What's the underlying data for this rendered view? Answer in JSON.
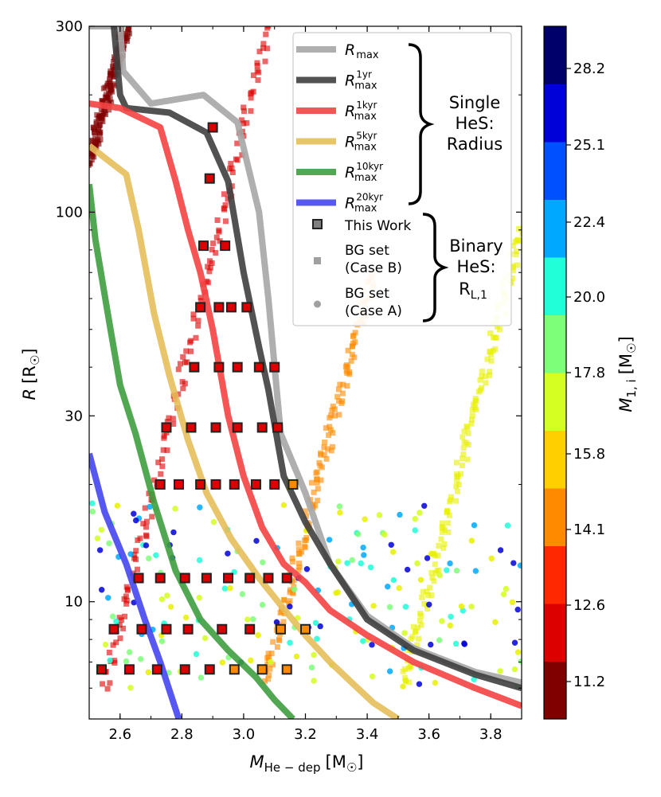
{
  "chart_data": {
    "type": "line",
    "x_axis": {
      "label_main": "M",
      "label_sub": "He − dep",
      "label_unit": "[M",
      "label_unit_sub": "☉",
      "label_close": "]",
      "range": [
        2.5,
        3.9
      ],
      "ticks": [
        2.6,
        2.8,
        3.0,
        3.2,
        3.4,
        3.6,
        3.8
      ],
      "tick_labels": [
        "2.6",
        "2.8",
        "3.0",
        "3.2",
        "3.4",
        "3.6",
        "3.8"
      ]
    },
    "y_axis": {
      "label_main": "R",
      "label_unit": "[R",
      "label_unit_sub": "☉",
      "label_close": "]",
      "scale": "log",
      "range": [
        5.0,
        300
      ],
      "ticks": [
        10,
        30,
        100,
        300
      ],
      "tick_labels": [
        "10",
        "30",
        "100",
        "300"
      ]
    },
    "colorbar": {
      "label_main": "M",
      "label_sub": "1, i",
      "label_unit": "[M",
      "label_unit_sub": "☉",
      "label_close": "]",
      "bins": [
        {
          "color": "#800000",
          "label": "11.2"
        },
        {
          "color": "#dd0000",
          "label": "12.6"
        },
        {
          "color": "#ff2800",
          "label": ""
        },
        {
          "color": "#ff8a00",
          "label": "14.1"
        },
        {
          "color": "#ffd000",
          "label": "15.8"
        },
        {
          "color": "#d4ff20",
          "label": ""
        },
        {
          "color": "#7dff7a",
          "label": "17.8"
        },
        {
          "color": "#20ffd8",
          "label": "20.0"
        },
        {
          "color": "#00a8ff",
          "label": "22.4"
        },
        {
          "color": "#0050ff",
          "label": "25.1"
        },
        {
          "color": "#0000d8",
          "label": "28.2"
        },
        {
          "color": "#00006a",
          "label": ""
        }
      ]
    },
    "series": [
      {
        "name": "R_max",
        "label": "R",
        "sub": "max",
        "sup": "",
        "color": "#a6a6a6",
        "points": [
          [
            2.5,
            300
          ],
          [
            2.6,
            300
          ],
          [
            2.61,
            230
          ],
          [
            2.7,
            190
          ],
          [
            2.87,
            200
          ],
          [
            2.98,
            170
          ],
          [
            3.05,
            100
          ],
          [
            3.08,
            60
          ],
          [
            3.12,
            27
          ],
          [
            3.2,
            19
          ],
          [
            3.28,
            12.5
          ],
          [
            3.4,
            9.2
          ],
          [
            3.55,
            7.6
          ],
          [
            3.75,
            6.6
          ],
          [
            3.9,
            6.2
          ]
        ]
      },
      {
        "name": "R_max_1yr",
        "label": "R",
        "sub": "max",
        "sup": "1yr",
        "color": "#3f3f3f",
        "points": [
          [
            2.58,
            300
          ],
          [
            2.6,
            200
          ],
          [
            2.62,
            185
          ],
          [
            2.76,
            180
          ],
          [
            2.88,
            160
          ],
          [
            2.95,
            120
          ],
          [
            3.0,
            70
          ],
          [
            3.05,
            45
          ],
          [
            3.08,
            35
          ],
          [
            3.13,
            21
          ],
          [
            3.2,
            16
          ],
          [
            3.28,
            12.5
          ],
          [
            3.4,
            9.0
          ],
          [
            3.55,
            7.5
          ],
          [
            3.75,
            6.5
          ],
          [
            3.9,
            6.0
          ]
        ]
      },
      {
        "name": "R_max_1kyr",
        "label": "R",
        "sub": "max",
        "sup": "1kyr",
        "color": "#f44242",
        "points": [
          [
            2.5,
            190
          ],
          [
            2.6,
            185
          ],
          [
            2.73,
            165
          ],
          [
            2.78,
            120
          ],
          [
            2.82,
            90
          ],
          [
            2.86,
            70
          ],
          [
            2.9,
            50
          ],
          [
            2.95,
            30
          ],
          [
            3.0,
            21
          ],
          [
            3.06,
            15.5
          ],
          [
            3.13,
            12.5
          ],
          [
            3.2,
            11.2
          ],
          [
            3.28,
            9.5
          ],
          [
            3.4,
            8.2
          ],
          [
            3.55,
            7.0
          ],
          [
            3.75,
            6.0
          ],
          [
            3.9,
            5.4
          ]
        ]
      },
      {
        "name": "R_max_5kyr",
        "label": "R",
        "sub": "max",
        "sup": "5kyr",
        "color": "#e6be5a",
        "points": [
          [
            2.5,
            148
          ],
          [
            2.62,
            125
          ],
          [
            2.66,
            90
          ],
          [
            2.71,
            55
          ],
          [
            2.76,
            38
          ],
          [
            2.82,
            26
          ],
          [
            2.88,
            19
          ],
          [
            2.96,
            14.5
          ],
          [
            3.05,
            11.5
          ],
          [
            3.12,
            9.8
          ],
          [
            3.2,
            8.2
          ],
          [
            3.28,
            7.0
          ],
          [
            3.35,
            6.2
          ],
          [
            3.42,
            5.5
          ],
          [
            3.5,
            5.0
          ]
        ]
      },
      {
        "name": "R_max_10kyr",
        "label": "R",
        "sub": "max",
        "sup": "10kyr",
        "color": "#3f9f3f",
        "points": [
          [
            2.5,
            118
          ],
          [
            2.52,
            85
          ],
          [
            2.56,
            55
          ],
          [
            2.6,
            36
          ],
          [
            2.65,
            27
          ],
          [
            2.71,
            18
          ],
          [
            2.78,
            12
          ],
          [
            2.86,
            9.0
          ],
          [
            2.95,
            7.5
          ],
          [
            3.04,
            6.4
          ],
          [
            3.1,
            5.6
          ],
          [
            3.16,
            5.0
          ]
        ]
      },
      {
        "name": "R_max_20kyr",
        "label": "R",
        "sub": "max",
        "sup": "20kyr",
        "color": "#4545f0",
        "points": [
          [
            2.5,
            24
          ],
          [
            2.55,
            17
          ],
          [
            2.62,
            12.5
          ],
          [
            2.68,
            9.0
          ],
          [
            2.73,
            7.0
          ],
          [
            2.79,
            5.0
          ]
        ]
      }
    ],
    "scatter_groups": [
      {
        "name": "This Work",
        "marker": "square-outlined",
        "points": [
          [
            2.9,
            165
          ],
          [
            2.89,
            122
          ],
          [
            2.87,
            82
          ],
          [
            2.94,
            82
          ],
          [
            2.86,
            57
          ],
          [
            2.92,
            57
          ],
          [
            2.96,
            57
          ],
          [
            3.01,
            57
          ],
          [
            2.84,
            40
          ],
          [
            2.92,
            40
          ],
          [
            2.98,
            40
          ],
          [
            3.05,
            40
          ],
          [
            3.1,
            40
          ],
          [
            2.75,
            28
          ],
          [
            2.83,
            28
          ],
          [
            2.91,
            28
          ],
          [
            2.98,
            28
          ],
          [
            3.06,
            28
          ],
          [
            3.11,
            28
          ],
          [
            2.73,
            20
          ],
          [
            2.79,
            20
          ],
          [
            2.86,
            20
          ],
          [
            2.91,
            20
          ],
          [
            2.97,
            20
          ],
          [
            3.04,
            20
          ],
          [
            3.1,
            20
          ],
          [
            3.16,
            20
          ],
          [
            2.66,
            11.5
          ],
          [
            2.73,
            11.5
          ],
          [
            2.81,
            11.5
          ],
          [
            2.88,
            11.5
          ],
          [
            2.95,
            11.5
          ],
          [
            3.02,
            11.5
          ],
          [
            3.08,
            11.5
          ],
          [
            3.14,
            11.5
          ],
          [
            2.58,
            8.5
          ],
          [
            2.67,
            8.5
          ],
          [
            2.75,
            8.5
          ],
          [
            2.82,
            8.5
          ],
          [
            2.93,
            8.5
          ],
          [
            3.02,
            8.5
          ],
          [
            3.12,
            8.5
          ],
          [
            3.2,
            8.5
          ],
          [
            2.54,
            6.7
          ],
          [
            2.63,
            6.7
          ],
          [
            2.72,
            6.7
          ],
          [
            2.81,
            6.7
          ],
          [
            2.89,
            6.7
          ],
          [
            2.97,
            6.7
          ],
          [
            3.06,
            6.7
          ],
          [
            3.14,
            6.7
          ]
        ],
        "colors": [
          "#dd0000",
          "#dd0000",
          "#dd0000",
          "#dd0000",
          "#dd0000",
          "#dd0000",
          "#dd0000",
          "#dd0000",
          "#dd0000",
          "#dd0000",
          "#dd0000",
          "#dd0000",
          "#dd0000",
          "#dd0000",
          "#dd0000",
          "#dd0000",
          "#dd0000",
          "#dd0000",
          "#dd0000",
          "#dd0000",
          "#dd0000",
          "#dd0000",
          "#dd0000",
          "#dd0000",
          "#dd0000",
          "#dd0000",
          "#ff8a00",
          "#dd0000",
          "#dd0000",
          "#dd0000",
          "#dd0000",
          "#dd0000",
          "#dd0000",
          "#dd0000",
          "#dd0000",
          "#dd0000",
          "#dd0000",
          "#dd0000",
          "#dd0000",
          "#dd0000",
          "#dd0000",
          "#ff8a00",
          "#ff8a00",
          "#dd0000",
          "#dd0000",
          "#dd0000",
          "#dd0000",
          "#dd0000",
          "#ff8a00",
          "#ff8a00",
          "#ff8a00"
        ]
      },
      {
        "name": "BG set (Case B)",
        "marker": "square",
        "tracks": [
          {
            "color": "#800000",
            "from": [
              2.5,
              135
            ],
            "to": [
              2.62,
              300
            ]
          },
          {
            "color": "#dd0000",
            "from": [
              2.55,
              6.0
            ],
            "to": [
              3.08,
              300
            ]
          },
          {
            "color": "#ff8a00",
            "from": [
              3.07,
              6.3
            ],
            "to": [
              3.42,
              70
            ]
          },
          {
            "color": "#e8f000",
            "from": [
              3.52,
              6.2
            ],
            "to": [
              3.9,
              90
            ]
          }
        ]
      },
      {
        "name": "BG set (Case A)",
        "marker": "circle",
        "colors": [
          "#7dff7a",
          "#d4ff20",
          "#20ffd8",
          "#00a8ff",
          "#0000d8",
          "#e8f000"
        ]
      }
    ],
    "legend": {
      "title_single": [
        "Single",
        "HeS:",
        "Radius"
      ],
      "title_binary": [
        "Binary",
        "HeS:",
        "R"
      ],
      "binary_sub": "L,1",
      "this_work": "This Work",
      "bg_b": [
        "BG set",
        "(Case B)"
      ],
      "bg_a": [
        "BG set",
        "(Case A)"
      ]
    }
  }
}
